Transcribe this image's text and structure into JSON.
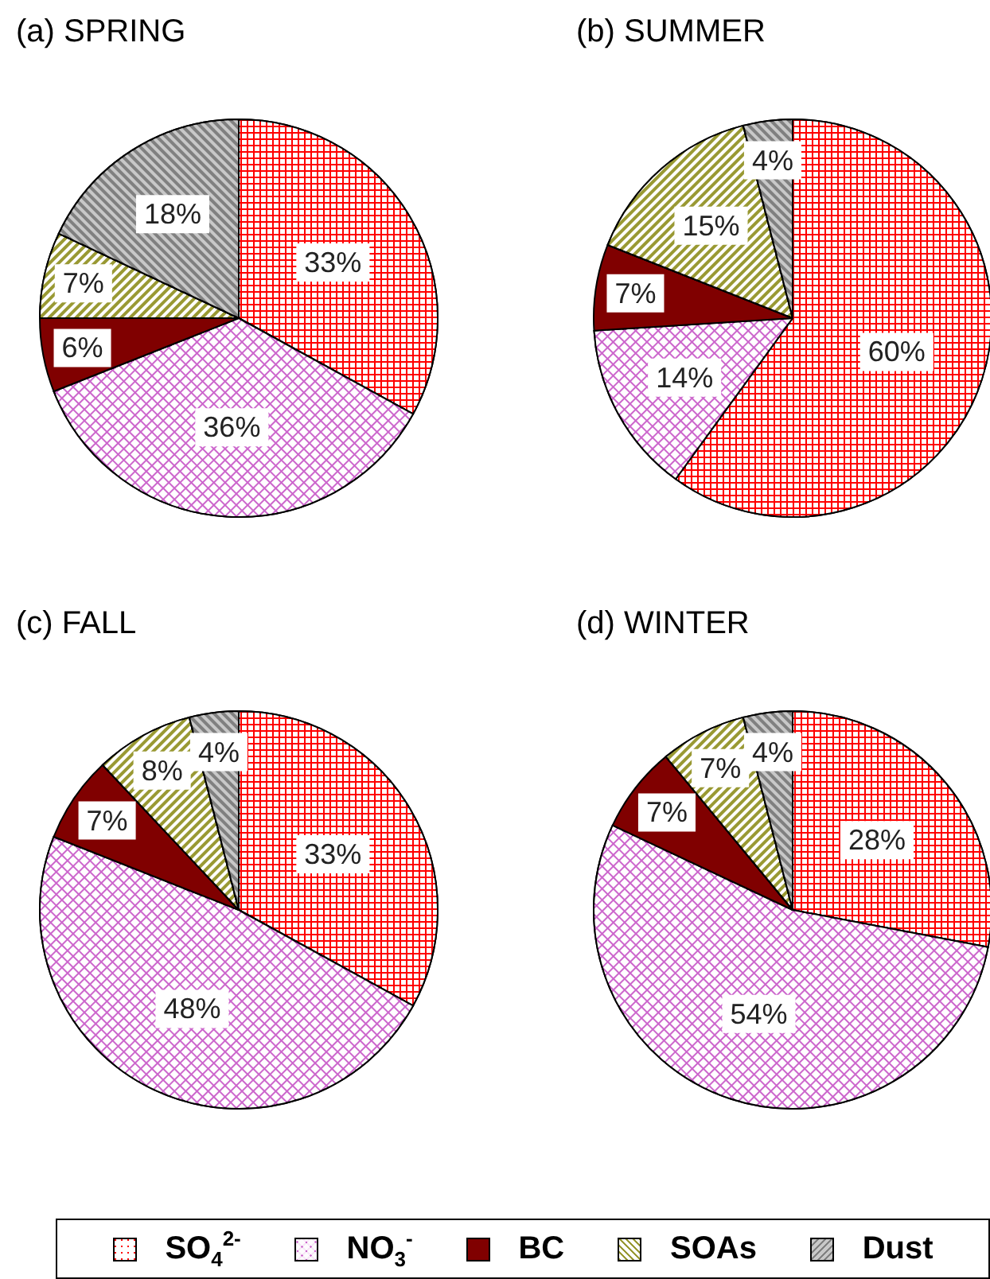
{
  "chart_data": [
    {
      "type": "pie",
      "title": "(a) SPRING",
      "categories": [
        null,
        null,
        null,
        null,
        null
      ],
      "values": [
        33,
        36,
        6,
        7,
        18
      ],
      "value_labels": [
        "33%",
        "36%",
        "6%",
        "7%",
        "18%"
      ],
      "colors": [
        "#ff0000",
        "#cc66cc",
        "#800000",
        "#999933",
        "#808080"
      ]
    },
    {
      "type": "pie",
      "title": "(b) SUMMER",
      "categories": [
        null,
        null,
        null,
        null,
        null
      ],
      "values": [
        60,
        14,
        7,
        15,
        4
      ],
      "value_labels": [
        "60%",
        "14%",
        "7%",
        "15%",
        "4%"
      ],
      "colors": [
        "#ff0000",
        "#cc66cc",
        "#800000",
        "#999933",
        "#808080"
      ]
    },
    {
      "type": "pie",
      "title": "(c) FALL",
      "categories": [
        null,
        null,
        null,
        null,
        null
      ],
      "values": [
        33,
        48,
        7,
        8,
        4
      ],
      "value_labels": [
        "33%",
        "48%",
        "7%",
        "8%",
        "4%"
      ],
      "colors": [
        "#ff0000",
        "#cc66cc",
        "#800000",
        "#999933",
        "#808080"
      ]
    },
    {
      "type": "pie",
      "title": "(d) WINTER",
      "categories": [
        "SO$_{4}$$^{2-}$",
        "NO$_{3}$$^{-}$",
        "BC",
        "SOAs",
        "Dust"
      ],
      "values": [
        28,
        54,
        7,
        7,
        4
      ],
      "value_labels": [
        "28%",
        "54%",
        "7%",
        "7%",
        "4%"
      ],
      "colors": [
        "#ff0000",
        "#cc66cc",
        "#800000",
        "#999933",
        "#808080"
      ],
      "legend": "bottom"
    }
  ]
}
